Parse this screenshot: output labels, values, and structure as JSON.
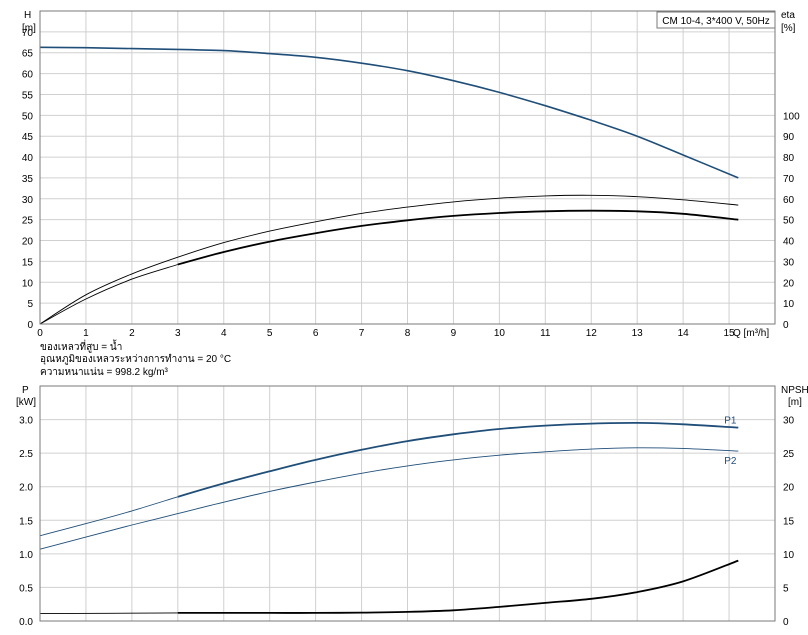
{
  "legend_box": "CM 10-4, 3*400 V, 50Hz",
  "notes": [
    "ของเหลวที่สูบ = น้ำ",
    "อุณหภูมิของเหลวระหว่างการทำงาน = 20 °C",
    "ความหนาแน่น = 998.2 kg/m³"
  ],
  "chart_data": [
    {
      "type": "line",
      "name": "performance",
      "y_left_label": [
        "H",
        "[m]"
      ],
      "y_right_label": [
        "eta",
        "[%]"
      ],
      "x_label": "Q [m³/h]",
      "xlim": [
        0,
        16
      ],
      "ylim_left": [
        0,
        75
      ],
      "ylim_right": [
        0,
        150
      ],
      "x_ticks": [
        0,
        1,
        2,
        3,
        4,
        5,
        6,
        7,
        8,
        9,
        10,
        11,
        12,
        13,
        14,
        15
      ],
      "y_left_ticks": [
        0,
        5,
        10,
        15,
        20,
        25,
        30,
        35,
        40,
        45,
        50,
        55,
        60,
        65,
        70
      ],
      "y_right_ticks": [
        0,
        10,
        20,
        30,
        40,
        50,
        60,
        70,
        80,
        90,
        100
      ],
      "grid": true,
      "series": [
        {
          "key": "H",
          "axis": "left",
          "color": "#1f4e79",
          "width": 1.6,
          "x": [
            0,
            1,
            2,
            3,
            4,
            5,
            6,
            7,
            8,
            9,
            10,
            11,
            12,
            13,
            14,
            15.2
          ],
          "y": [
            66.3,
            66.2,
            66.0,
            65.8,
            65.5,
            64.8,
            63.9,
            62.5,
            60.7,
            58.3,
            55.5,
            52.3,
            48.8,
            45.0,
            40.5,
            35.0
          ]
        },
        {
          "key": "eta_thin",
          "axis": "right",
          "color": "#000000",
          "width": 0.9,
          "x": [
            0,
            1,
            2,
            3,
            4,
            5,
            6,
            7,
            8,
            9,
            10,
            11,
            12,
            13,
            14,
            15.2
          ],
          "y": [
            0,
            14,
            24,
            32,
            39,
            44.5,
            49,
            53,
            56,
            58.5,
            60.3,
            61.4,
            61.7,
            61.0,
            59.5,
            57.0
          ]
        },
        {
          "key": "eta_thick",
          "axis": "right",
          "color": "#000000",
          "width": 1.8,
          "x": [
            3,
            4,
            5,
            6,
            7,
            8,
            9,
            10,
            11,
            12,
            13,
            14,
            15.2
          ],
          "y": [
            28.5,
            34.5,
            39.5,
            43.5,
            47,
            49.7,
            51.8,
            53.2,
            54.0,
            54.3,
            54.0,
            52.8,
            50.0
          ]
        },
        {
          "key": "eta_early",
          "axis": "right",
          "color": "#000000",
          "width": 0.9,
          "x": [
            0,
            1,
            2,
            3
          ],
          "y": [
            0,
            12,
            21.5,
            28.5
          ]
        }
      ]
    },
    {
      "type": "line",
      "name": "power_npsh",
      "y_left_label": [
        "P",
        "[kW]"
      ],
      "y_right_label": [
        "NPSH",
        "[m]"
      ],
      "xlim": [
        0,
        16
      ],
      "ylim_left": [
        0,
        3.5
      ],
      "ylim_right": [
        0,
        35
      ],
      "y_left_ticks": [
        0.0,
        0.5,
        1.0,
        1.5,
        2.0,
        2.5,
        3.0
      ],
      "y_left_tick_labels": [
        "0.0",
        "0.5",
        "1.0",
        "1.5",
        "2.0",
        "2.5",
        "3.0"
      ],
      "y_right_ticks": [
        0,
        5,
        10,
        15,
        20,
        25,
        30
      ],
      "grid": true,
      "series": [
        {
          "name": "P1",
          "axis": "left",
          "color": "#1f4e79",
          "width": 1.8,
          "x": [
            3,
            4,
            5,
            6,
            7,
            8,
            9,
            10,
            11,
            12,
            13,
            14,
            15.2
          ],
          "y": [
            1.85,
            2.05,
            2.23,
            2.4,
            2.55,
            2.68,
            2.78,
            2.86,
            2.91,
            2.94,
            2.95,
            2.93,
            2.88
          ]
        },
        {
          "name": "P1",
          "axis": "left",
          "color": "#1f4e79",
          "width": 0.9,
          "x": [
            0,
            1,
            2,
            3
          ],
          "y": [
            1.27,
            1.45,
            1.64,
            1.85
          ]
        },
        {
          "name": "P2",
          "axis": "left",
          "color": "#1f4e79",
          "width": 0.9,
          "x": [
            0,
            1,
            2,
            3,
            4,
            5,
            6,
            7,
            8,
            9,
            10,
            11,
            12,
            13,
            14,
            15.2
          ],
          "y": [
            1.07,
            1.25,
            1.43,
            1.6,
            1.77,
            1.93,
            2.07,
            2.2,
            2.31,
            2.4,
            2.47,
            2.52,
            2.56,
            2.58,
            2.57,
            2.53
          ]
        },
        {
          "name": "NPSH",
          "axis": "right",
          "color": "#000000",
          "width": 1.8,
          "x": [
            3,
            4,
            5,
            6,
            7,
            8,
            9,
            10,
            11,
            12,
            13,
            14,
            15.2
          ],
          "y": [
            1.2,
            1.2,
            1.2,
            1.2,
            1.25,
            1.35,
            1.6,
            2.1,
            2.7,
            3.3,
            4.3,
            5.9,
            9.0
          ]
        },
        {
          "name": "NPSH",
          "axis": "right",
          "color": "#000000",
          "width": 0.9,
          "x": [
            0,
            3
          ],
          "y": [
            1.1,
            1.2
          ]
        }
      ],
      "labels": [
        {
          "text": "P1",
          "x": 15.2,
          "y": 2.88
        },
        {
          "text": "P2",
          "x": 15.2,
          "y": 2.53
        }
      ]
    }
  ]
}
